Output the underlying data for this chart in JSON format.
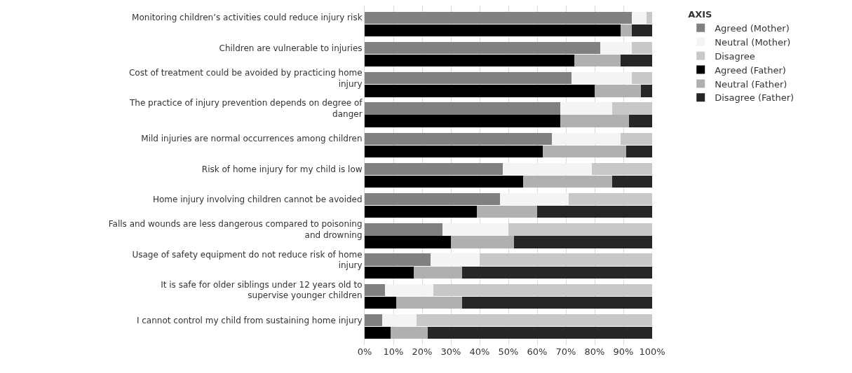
{
  "chart_data": {
    "type": "bar",
    "orientation": "horizontal",
    "stacked": true,
    "legend_title": "AXIS",
    "legend": "right",
    "grid": "x",
    "categories": [
      "Monitoring children’s activities could reduce injury risk",
      null,
      "Children are vulnerable to injuries",
      null,
      "Cost of treatment could be avoided by practicing home injury",
      null,
      "The practice of injury prevention depends on degree of danger",
      null,
      "Mild injuries are normal occurrences among children",
      null,
      "Risk of home injury for my child is low",
      null,
      "Home injury involving children cannot be avoided",
      null,
      "Falls and wounds are less dangerous compared to poisoning and drowning",
      null,
      "Usage of safety equipment do not reduce risk of home injury",
      null,
      "It is safe for older siblings under 12 years old to supervise younger children",
      null,
      "I cannot control my child from sustaining home injury",
      null
    ],
    "series": [
      {
        "name": "Agreed (Mother)",
        "color": "#808080",
        "values": [
          93,
          null,
          82,
          null,
          72,
          null,
          68,
          null,
          65,
          null,
          48,
          null,
          47,
          null,
          27,
          null,
          23,
          null,
          7,
          null,
          6,
          null
        ]
      },
      {
        "name": "Neutral (Mother)",
        "color": "#f4f4f4",
        "values": [
          5,
          null,
          11,
          null,
          21,
          null,
          18,
          null,
          24,
          null,
          31,
          null,
          24,
          null,
          23,
          null,
          17,
          null,
          17,
          null,
          12,
          null
        ]
      },
      {
        "name": "Disagree",
        "color": "#c8c8c8",
        "values": [
          2,
          null,
          7,
          null,
          7,
          null,
          14,
          null,
          11,
          null,
          21,
          null,
          29,
          null,
          50,
          null,
          60,
          null,
          76,
          null,
          82,
          null
        ]
      },
      {
        "name": "Agreed (Father)",
        "color": "#000000",
        "values": [
          null,
          89,
          null,
          73,
          null,
          80,
          null,
          68,
          null,
          62,
          null,
          55,
          null,
          39,
          null,
          30,
          null,
          17,
          null,
          11,
          null,
          9
        ]
      },
      {
        "name": "Neutral (Father)",
        "color": "#b0b0b0",
        "values": [
          null,
          4,
          null,
          16,
          null,
          16,
          null,
          24,
          null,
          29,
          null,
          31,
          null,
          21,
          null,
          22,
          null,
          17,
          null,
          23,
          null,
          13
        ]
      },
      {
        "name": "Disagree (Father)",
        "color": "#262626",
        "values": [
          null,
          7,
          null,
          11,
          null,
          4,
          null,
          8,
          null,
          9,
          null,
          14,
          null,
          40,
          null,
          48,
          null,
          66,
          null,
          66,
          null,
          78
        ]
      }
    ],
    "xlim": [
      0,
      100
    ],
    "xticks": [
      {
        "value": 0,
        "label": "0%"
      },
      {
        "value": 10,
        "label": "10%"
      },
      {
        "value": 20,
        "label": "20%"
      },
      {
        "value": 30,
        "label": "30%"
      },
      {
        "value": 40,
        "label": "40%"
      },
      {
        "value": 50,
        "label": "50%"
      },
      {
        "value": 60,
        "label": "60%"
      },
      {
        "value": 70,
        "label": "70%"
      },
      {
        "value": 80,
        "label": "80%"
      },
      {
        "value": 90,
        "label": "90%"
      },
      {
        "value": 100,
        "label": "100%"
      }
    ]
  }
}
